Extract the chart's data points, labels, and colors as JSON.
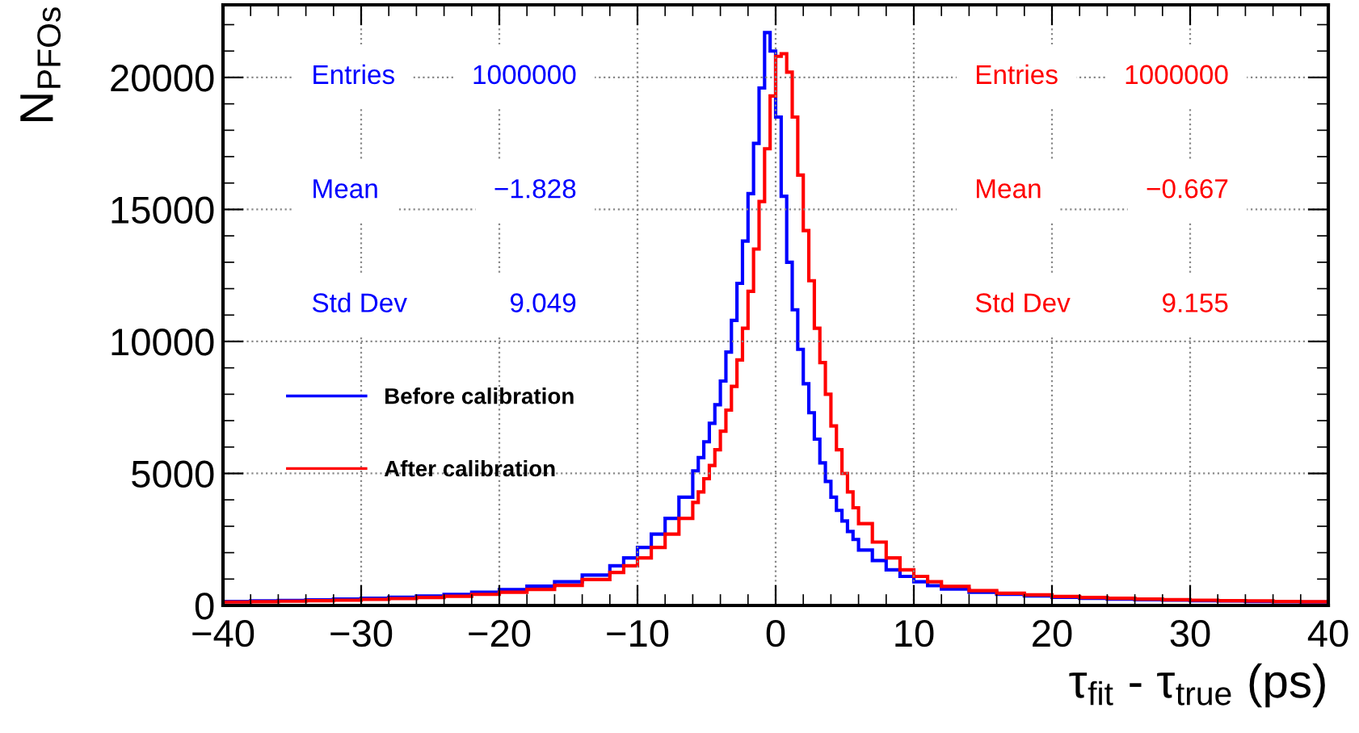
{
  "chart_data": {
    "type": "histogram",
    "xlabel": "τ$_{fit}$ - τ$_{true}$ (ps)",
    "ylabel": "N$_{PFOs}$",
    "bins": [
      -40,
      -38,
      -36,
      -34,
      -32,
      -30,
      -28,
      -26,
      -24,
      -22,
      -20,
      -18,
      -16,
      -14,
      -12,
      -11,
      -10,
      -9,
      -8,
      -7,
      -6,
      -5.6,
      -5.2,
      -4.8,
      -4.4,
      -4,
      -3.6,
      -3.2,
      -2.8,
      -2.4,
      -2,
      -1.6,
      -1.2,
      -0.8,
      -0.4,
      0,
      0.4,
      0.8,
      1.2,
      1.6,
      2,
      2.4,
      2.8,
      3.2,
      3.6,
      4,
      4.4,
      4.8,
      5.2,
      5.6,
      6,
      7,
      8,
      9,
      10,
      11,
      12,
      14,
      16,
      18,
      20,
      22,
      24,
      26,
      28,
      30,
      32,
      34,
      36,
      38,
      40
    ],
    "series": [
      {
        "name": "Before calibration",
        "color": "#0000ff",
        "values": [
          150,
          170,
          190,
          210,
          240,
          270,
          310,
          360,
          420,
          500,
          600,
          730,
          900,
          1150,
          1500,
          1800,
          2200,
          2700,
          3300,
          4100,
          5100,
          5600,
          6200,
          6900,
          7600,
          8500,
          9600,
          10800,
          12200,
          13800,
          15600,
          17500,
          19600,
          21700,
          21000,
          18500,
          15500,
          13000,
          11200,
          9700,
          8400,
          7300,
          6300,
          5400,
          4700,
          4100,
          3600,
          3200,
          2800,
          2500,
          2100,
          1700,
          1350,
          1100,
          900,
          750,
          620,
          500,
          420,
          360,
          310,
          270,
          240,
          220,
          200,
          180,
          170,
          150,
          140,
          130
        ]
      },
      {
        "name": "After calibration",
        "color": "#ff0000",
        "values": [
          130,
          140,
          160,
          180,
          200,
          230,
          260,
          300,
          350,
          420,
          500,
          610,
          760,
          980,
          1250,
          1500,
          1800,
          2200,
          2700,
          3300,
          3900,
          4300,
          4800,
          5300,
          5900,
          6600,
          7400,
          8300,
          9300,
          10500,
          11900,
          13500,
          15300,
          17300,
          19300,
          20800,
          20900,
          20200,
          18500,
          16300,
          14200,
          12300,
          10500,
          9200,
          8000,
          6800,
          5900,
          5000,
          4300,
          3700,
          3100,
          2400,
          1800,
          1350,
          1100,
          900,
          720,
          560,
          460,
          400,
          340,
          300,
          270,
          240,
          220,
          200,
          180,
          170,
          150,
          140
        ]
      }
    ],
    "xlim": [
      -40,
      40
    ],
    "xticks": [
      {
        "value": -40,
        "label": "−40"
      },
      {
        "value": -30,
        "label": "−30"
      },
      {
        "value": -20,
        "label": "−20"
      },
      {
        "value": -10,
        "label": "−10"
      },
      0,
      10,
      20,
      30,
      40
    ],
    "ylim": [
      0,
      22750
    ],
    "yticks": [
      0,
      5000,
      10000,
      15000,
      20000
    ],
    "annotations": [
      "Entries",
      "1000000",
      "Mean",
      "−1.828",
      "Std Dev",
      "9.049",
      "Entries",
      "1000000",
      "Mean",
      "−0.667",
      "Std Dev",
      "9.155"
    ],
    "grid": true,
    "legend": "left"
  }
}
